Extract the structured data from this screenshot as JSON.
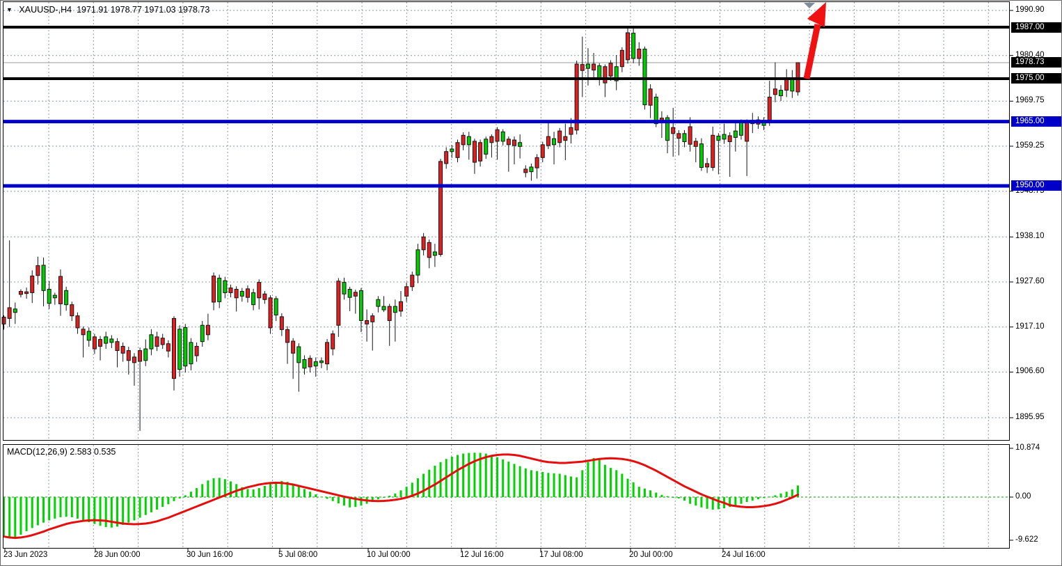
{
  "title": {
    "symbol_period": "XAUUSD-,H4",
    "open": "1971.91",
    "high": "1978.77",
    "low": "1971.03",
    "close": "1978.73"
  },
  "colors": {
    "bull_candle": "#e02020",
    "bear_candle": "#00cc00",
    "candle_border": "#151515",
    "wick": "#151515",
    "histogram": "#00d400",
    "signal_line": "#e60d0d",
    "level_black": "#000000",
    "level_blue": "#0000c8",
    "grid": "#8a99a8",
    "zero_line": "#00a000",
    "badge_black_bg": "#000000",
    "badge_blue_bg": "#0000c8",
    "current_price_line": "#999999",
    "arrow": "#f01212",
    "scroll_marker": "#7f8c99"
  },
  "price_axis": {
    "ticks": [
      1990.9,
      1980.4,
      1969.75,
      1959.25,
      1948.75,
      1938.1,
      1927.6,
      1917.1,
      1906.6,
      1895.95
    ],
    "badges": [
      {
        "label": "1987.00",
        "price": 1987.0,
        "bg": "black",
        "name": "resistance-badge-1987"
      },
      {
        "label": "1978.73",
        "price": 1978.73,
        "bg": "black",
        "name": "current-price-badge"
      },
      {
        "label": "1975.00",
        "price": 1975.0,
        "bg": "black",
        "name": "resistance-badge-1975"
      },
      {
        "label": "1965.00",
        "price": 1965.0,
        "bg": "blue",
        "name": "support-badge-1965"
      },
      {
        "label": "1950.00",
        "price": 1950.0,
        "bg": "blue",
        "name": "support-badge-1950"
      }
    ]
  },
  "levels": [
    {
      "price": 1987.0,
      "color": "black",
      "width": 4,
      "name": "resistance-line-1987"
    },
    {
      "price": 1975.0,
      "color": "black",
      "width": 4,
      "name": "resistance-line-1975"
    },
    {
      "price": 1965.0,
      "color": "blue",
      "width": 5,
      "name": "support-line-1965"
    },
    {
      "price": 1950.0,
      "color": "blue",
      "width": 5,
      "name": "support-line-1950"
    }
  ],
  "current_price": 1978.73,
  "time_axis": {
    "labels": [
      {
        "text": "23 Jun 2023",
        "x": 4
      },
      {
        "text": "28 Jun 00:00",
        "x": 134
      },
      {
        "text": "30 Jun 16:00",
        "x": 267
      },
      {
        "text": "5 Jul 08:00",
        "x": 399
      },
      {
        "text": "10 Jul 00:00",
        "x": 526
      },
      {
        "text": "12 Jul 16:00",
        "x": 660
      },
      {
        "text": "17 Jul 08:00",
        "x": 774
      },
      {
        "text": "20 Jul 00:00",
        "x": 903
      },
      {
        "text": "24 Jul 16:00",
        "x": 1036
      }
    ]
  },
  "macd": {
    "label": "MACD(12,26,9) 2.583 0.535",
    "name_text": "MACD(12,26,9)",
    "value_main": "2.583",
    "value_signal": "0.535",
    "yticks": [
      {
        "label": "10.874",
        "v": 10.874
      },
      {
        "label": "0.00",
        "v": 0.0
      },
      {
        "label": "-9.622",
        "v": -9.622
      }
    ]
  },
  "chart_data": {
    "type": "candlestick_with_macd",
    "symbol": "XAUUSD",
    "timeframe": "H4",
    "ylim": [
      1893.5,
      1993.2
    ],
    "grid": "dashed",
    "candles_format": [
      "open",
      "high",
      "low",
      "close",
      "color r=red g=green"
    ],
    "candles": [
      [
        1917.8,
        1919.8,
        1916.5,
        1919.4,
        "r"
      ],
      [
        1919.1,
        1937.3,
        1917.1,
        1921.6,
        "r"
      ],
      [
        1921.3,
        1922.8,
        1917.8,
        1920.5,
        "g"
      ],
      [
        1924.7,
        1925.9,
        1924.0,
        1925.4,
        "r"
      ],
      [
        1924.9,
        1926.3,
        1923.7,
        1925.3,
        "r"
      ],
      [
        1925.1,
        1930.3,
        1922.7,
        1929.0,
        "r"
      ],
      [
        1929.1,
        1933.5,
        1927.0,
        1931.4,
        "r"
      ],
      [
        1931.5,
        1933.3,
        1921.9,
        1925.6,
        "g"
      ],
      [
        1925.9,
        1927.8,
        1921.3,
        1922.6,
        "g"
      ],
      [
        1924.5,
        1925.1,
        1922.3,
        1923.9,
        "g"
      ],
      [
        1922.5,
        1930.5,
        1919.7,
        1928.9,
        "r"
      ],
      [
        1925.6,
        1926.5,
        1920.9,
        1922.3,
        "g"
      ],
      [
        1919.7,
        1923.0,
        1918.5,
        1922.3,
        "r"
      ],
      [
        1916.9,
        1920.5,
        1915.5,
        1919.7,
        "r"
      ],
      [
        1915.3,
        1917.2,
        1910.0,
        1916.6,
        "r"
      ],
      [
        1916.1,
        1917.0,
        1912.5,
        1914.0,
        "g"
      ],
      [
        1912.0,
        1915.5,
        1910.8,
        1914.8,
        "r"
      ],
      [
        1912.6,
        1915.0,
        1909.3,
        1914.2,
        "r"
      ],
      [
        1914.8,
        1916.0,
        1912.0,
        1913.3,
        "g"
      ],
      [
        1914.3,
        1915.2,
        1912.2,
        1913.5,
        "g"
      ],
      [
        1911.6,
        1914.5,
        1907.7,
        1913.7,
        "r"
      ],
      [
        1911.0,
        1913.5,
        1909.0,
        1912.6,
        "r"
      ],
      [
        1909.3,
        1912.5,
        1906.0,
        1911.6,
        "r"
      ],
      [
        1908.8,
        1911.0,
        1903.4,
        1910.1,
        "r"
      ],
      [
        1909.1,
        1912.3,
        1892.9,
        1911.6,
        "r"
      ],
      [
        1912.0,
        1914.2,
        1908.0,
        1909.3,
        "g"
      ],
      [
        1915.3,
        1916.6,
        1910.5,
        1912.0,
        "g"
      ],
      [
        1912.6,
        1916.0,
        1911.5,
        1914.8,
        "r"
      ],
      [
        1913.0,
        1915.5,
        1912.0,
        1914.5,
        "r"
      ],
      [
        1911.5,
        1914.0,
        1910.0,
        1913.2,
        "r"
      ],
      [
        1905.1,
        1919.6,
        1902.3,
        1919.1,
        "r"
      ],
      [
        1916.6,
        1917.5,
        1905.5,
        1907.2,
        "g"
      ],
      [
        1917.0,
        1917.8,
        1906.5,
        1908.0,
        "g"
      ],
      [
        1913.5,
        1914.5,
        1907.0,
        1908.5,
        "g"
      ],
      [
        1910.4,
        1913.5,
        1909.0,
        1912.6,
        "r"
      ],
      [
        1917.5,
        1918.5,
        1912.5,
        1913.7,
        "g"
      ],
      [
        1915.3,
        1920.2,
        1914.0,
        1917.5,
        "r"
      ],
      [
        1922.9,
        1929.8,
        1921.0,
        1929.0,
        "r"
      ],
      [
        1928.5,
        1929.3,
        1921.5,
        1923.0,
        "g"
      ],
      [
        1927.9,
        1928.8,
        1923.8,
        1925.1,
        "g"
      ],
      [
        1925.1,
        1927.0,
        1924.0,
        1926.2,
        "r"
      ],
      [
        1923.9,
        1926.6,
        1920.7,
        1925.9,
        "r"
      ],
      [
        1925.4,
        1926.2,
        1923.0,
        1924.3,
        "g"
      ],
      [
        1924.0,
        1926.8,
        1922.8,
        1926.0,
        "r"
      ],
      [
        1925.1,
        1926.0,
        1921.0,
        1922.3,
        "g"
      ],
      [
        1923.9,
        1928.2,
        1921.2,
        1927.5,
        "r"
      ],
      [
        1923.5,
        1925.5,
        1922.5,
        1924.8,
        "r"
      ],
      [
        1916.9,
        1924.5,
        1915.5,
        1923.9,
        "r"
      ],
      [
        1923.7,
        1924.3,
        1918.5,
        1919.9,
        "g"
      ],
      [
        1916.5,
        1920.3,
        1915.0,
        1919.5,
        "r"
      ],
      [
        1913.5,
        1917.3,
        1908.5,
        1916.5,
        "r"
      ],
      [
        1911.0,
        1914.5,
        1905.0,
        1913.8,
        "r"
      ],
      [
        1912.5,
        1913.3,
        1902.0,
        1908.8,
        "g"
      ],
      [
        1909.5,
        1910.5,
        1906.0,
        1907.5,
        "g"
      ],
      [
        1907.8,
        1910.5,
        1906.5,
        1909.8,
        "r"
      ],
      [
        1909.0,
        1910.0,
        1905.5,
        1908.0,
        "g"
      ],
      [
        1909.2,
        1910.0,
        1907.5,
        1908.8,
        "g"
      ],
      [
        1908.5,
        1914.3,
        1907.0,
        1913.5,
        "r"
      ],
      [
        1912.0,
        1916.3,
        1910.5,
        1915.5,
        "r"
      ],
      [
        1917.5,
        1928.5,
        1914.8,
        1927.8,
        "r"
      ],
      [
        1927.5,
        1928.6,
        1923.5,
        1924.8,
        "g"
      ],
      [
        1925.9,
        1926.5,
        1920.8,
        1924.0,
        "g"
      ],
      [
        1924.3,
        1925.8,
        1920.2,
        1925.2,
        "r"
      ],
      [
        1925.6,
        1926.2,
        1915.9,
        1918.6,
        "g"
      ],
      [
        1917.8,
        1921.2,
        1913.7,
        1918.6,
        "r"
      ],
      [
        1918.3,
        1920.3,
        1911.6,
        1919.7,
        "r"
      ],
      [
        1923.5,
        1924.3,
        1920.5,
        1921.9,
        "g"
      ],
      [
        1921.9,
        1924.3,
        1920.6,
        1921.1,
        "g"
      ],
      [
        1918.6,
        1922.5,
        1912.7,
        1921.9,
        "r"
      ],
      [
        1921.9,
        1923.5,
        1913.7,
        1920.5,
        "g"
      ],
      [
        1920.8,
        1925.5,
        1919.5,
        1923.0,
        "r"
      ],
      [
        1924.3,
        1927.5,
        1923.0,
        1926.5,
        "r"
      ],
      [
        1926.5,
        1930.0,
        1925.5,
        1929.2,
        "r"
      ],
      [
        1935.1,
        1936.5,
        1927.3,
        1929.2,
        "g"
      ],
      [
        1935.1,
        1939.0,
        1933.8,
        1938.1,
        "r"
      ],
      [
        1933.3,
        1937.5,
        1930.8,
        1936.8,
        "r"
      ],
      [
        1934.6,
        1936.5,
        1931.1,
        1933.8,
        "g"
      ],
      [
        1934.0,
        1956.3,
        1933.5,
        1955.7,
        "r"
      ],
      [
        1955.2,
        1959.0,
        1954.0,
        1958.0,
        "r"
      ],
      [
        1958.6,
        1959.5,
        1956.5,
        1958.0,
        "g"
      ],
      [
        1956.6,
        1960.8,
        1955.5,
        1960.1,
        "r"
      ],
      [
        1959.6,
        1962.5,
        1958.3,
        1961.8,
        "r"
      ],
      [
        1961.5,
        1962.6,
        1956.1,
        1959.6,
        "g"
      ],
      [
        1955.5,
        1961.0,
        1952.8,
        1960.4,
        "r"
      ],
      [
        1955.8,
        1960.8,
        1954.5,
        1960.1,
        "r"
      ],
      [
        1960.9,
        1961.5,
        1956.3,
        1957.4,
        "g"
      ],
      [
        1960.1,
        1962.0,
        1956.6,
        1961.5,
        "r"
      ],
      [
        1960.4,
        1963.7,
        1956.1,
        1963.1,
        "r"
      ],
      [
        1962.6,
        1963.2,
        1959.4,
        1960.4,
        "g"
      ],
      [
        1959.6,
        1961.5,
        1953.3,
        1960.9,
        "r"
      ],
      [
        1959.4,
        1961.5,
        1955.0,
        1960.7,
        "r"
      ],
      [
        1960.1,
        1962.0,
        1956.4,
        1959.2,
        "g"
      ],
      [
        1953.1,
        1954.8,
        1952.0,
        1953.9,
        "r"
      ],
      [
        1954.4,
        1955.2,
        1951.2,
        1953.3,
        "g"
      ],
      [
        1954.2,
        1957.4,
        1951.7,
        1956.6,
        "r"
      ],
      [
        1956.6,
        1960.3,
        1955.5,
        1959.6,
        "r"
      ],
      [
        1959.4,
        1965.3,
        1958.6,
        1961.5,
        "r"
      ],
      [
        1961.0,
        1962.6,
        1955.0,
        1959.6,
        "g"
      ],
      [
        1960.1,
        1963.5,
        1959.0,
        1962.8,
        "r"
      ],
      [
        1960.6,
        1964.5,
        1956.0,
        1961.5,
        "r"
      ],
      [
        1962.0,
        1965.8,
        1959.9,
        1963.6,
        "r"
      ],
      [
        1963.0,
        1979.2,
        1962.0,
        1978.4,
        "r"
      ],
      [
        1976.9,
        1984.8,
        1970.7,
        1978.3,
        "r"
      ],
      [
        1978.4,
        1982.1,
        1973.4,
        1977.4,
        "g"
      ],
      [
        1977.0,
        1981.0,
        1975.0,
        1978.4,
        "r"
      ],
      [
        1978.0,
        1978.6,
        1973.4,
        1975.1,
        "g"
      ],
      [
        1974.0,
        1978.3,
        1970.7,
        1977.8,
        "r"
      ],
      [
        1975.6,
        1979.3,
        1974.5,
        1978.6,
        "r"
      ],
      [
        1977.8,
        1980.5,
        1972.3,
        1974.5,
        "g"
      ],
      [
        1977.8,
        1982.3,
        1976.5,
        1981.6,
        "r"
      ],
      [
        1979.4,
        1987.1,
        1978.5,
        1985.7,
        "r"
      ],
      [
        1985.6,
        1986.7,
        1978.6,
        1979.7,
        "g"
      ],
      [
        1979.7,
        1983.5,
        1978.0,
        1981.9,
        "r"
      ],
      [
        1981.9,
        1982.5,
        1967.8,
        1968.9,
        "g"
      ],
      [
        1968.8,
        1973.7,
        1965.8,
        1972.6,
        "r"
      ],
      [
        1970.7,
        1971.5,
        1963.7,
        1964.5,
        "g"
      ],
      [
        1964.7,
        1967.4,
        1961.2,
        1965.8,
        "r"
      ],
      [
        1965.9,
        1966.5,
        1957.6,
        1960.6,
        "g"
      ],
      [
        1962.2,
        1968.2,
        1956.8,
        1963.6,
        "r"
      ],
      [
        1961.1,
        1963.0,
        1957.1,
        1962.2,
        "r"
      ],
      [
        1962.2,
        1963.0,
        1959.0,
        1960.3,
        "g"
      ],
      [
        1959.7,
        1966.0,
        1958.0,
        1963.8,
        "r"
      ],
      [
        1959.2,
        1961.2,
        1955.5,
        1960.4,
        "r"
      ],
      [
        1959.8,
        1961.1,
        1953.5,
        1954.3,
        "g"
      ],
      [
        1954.4,
        1956.5,
        1953.0,
        1955.2,
        "r"
      ],
      [
        1954.3,
        1963.8,
        1953.5,
        1961.8,
        "r"
      ],
      [
        1961.6,
        1962.3,
        1952.7,
        1960.6,
        "g"
      ],
      [
        1962.0,
        1964.5,
        1959.8,
        1960.9,
        "g"
      ],
      [
        1960.3,
        1962.5,
        1952.1,
        1961.7,
        "r"
      ],
      [
        1962.8,
        1964.8,
        1958.0,
        1961.3,
        "g"
      ],
      [
        1964.8,
        1965.5,
        1960.8,
        1961.8,
        "g"
      ],
      [
        1960.4,
        1965.5,
        1952.3,
        1964.9,
        "r"
      ],
      [
        1965.3,
        1967.0,
        1962.3,
        1964.5,
        "g"
      ],
      [
        1964.4,
        1966.2,
        1963.3,
        1965.4,
        "r"
      ],
      [
        1965.3,
        1966.0,
        1963.0,
        1964.1,
        "g"
      ],
      [
        1965.3,
        1974.5,
        1964.0,
        1970.7,
        "r"
      ],
      [
        1971.3,
        1978.8,
        1969.5,
        1972.6,
        "r"
      ],
      [
        1972.3,
        1973.5,
        1969.8,
        1971.0,
        "g"
      ],
      [
        1972.3,
        1977.2,
        1970.7,
        1974.8,
        "r"
      ],
      [
        1975.1,
        1977.0,
        1970.5,
        1972.1,
        "g"
      ],
      [
        1971.91,
        1978.77,
        1971.03,
        1978.73,
        "r"
      ]
    ],
    "macd_histogram": [
      -8.6,
      -9.2,
      -9.0,
      -8.4,
      -7.6,
      -6.9,
      -6.3,
      -5.7,
      -5.2,
      -4.8,
      -4.5,
      -4.4,
      -4.5,
      -4.8,
      -5.2,
      -5.6,
      -6.0,
      -6.4,
      -6.7,
      -6.8,
      -6.6,
      -6.2,
      -5.7,
      -5.2,
      -4.6,
      -4.0,
      -3.4,
      -2.8,
      -2.2,
      -1.6,
      -0.9,
      -0.3,
      0.4,
      1.2,
      2.0,
      2.9,
      3.7,
      4.2,
      4.3,
      4.0,
      3.5,
      2.9,
      2.2,
      1.8,
      1.7,
      2.0,
      2.5,
      3.0,
      3.4,
      3.6,
      3.4,
      3.0,
      2.4,
      1.8,
      1.2,
      0.6,
      0.1,
      -0.4,
      -0.9,
      -1.4,
      -1.9,
      -2.3,
      -2.2,
      -1.9,
      -1.5,
      -1.0,
      -0.5,
      -0.1,
      0.3,
      0.8,
      1.5,
      2.3,
      3.2,
      4.2,
      5.2,
      6.1,
      7.0,
      7.8,
      8.5,
      9.0,
      9.4,
      9.7,
      9.85,
      9.9,
      9.85,
      9.7,
      9.3,
      8.9,
      8.4,
      7.9,
      7.4,
      6.9,
      6.4,
      6.0,
      5.8,
      5.6,
      5.4,
      5.3,
      5.2,
      4.9,
      4.6,
      4.4,
      6.0,
      7.8,
      8.7,
      8.3,
      7.2,
      6.5,
      6.0,
      5.2,
      4.1,
      3.3,
      2.3,
      1.9,
      1.5,
      1.0,
      0.5,
      0.2,
      0.0,
      -0.3,
      -0.8,
      -1.5,
      -1.9,
      -2.3,
      -2.6,
      -2.8,
      -2.7,
      -2.5,
      -2.2,
      -1.9,
      -1.5,
      -1.1,
      -0.8,
      -0.5,
      -0.2,
      0.1,
      0.4,
      0.8,
      1.2,
      1.7,
      2.583
    ],
    "macd_signal": [
      -8.8,
      -9.0,
      -9.1,
      -9.0,
      -8.8,
      -8.5,
      -8.1,
      -7.7,
      -7.2,
      -6.8,
      -6.4,
      -6.0,
      -5.7,
      -5.5,
      -5.3,
      -5.2,
      -5.15,
      -5.2,
      -5.3,
      -5.5,
      -5.7,
      -5.9,
      -6.0,
      -6.05,
      -6.0,
      -5.9,
      -5.7,
      -5.4,
      -5.0,
      -4.6,
      -4.1,
      -3.6,
      -3.1,
      -2.6,
      -2.1,
      -1.6,
      -1.1,
      -0.6,
      -0.1,
      0.4,
      0.9,
      1.4,
      1.8,
      2.2,
      2.5,
      2.8,
      3.0,
      3.15,
      3.2,
      3.15,
      3.0,
      2.8,
      2.5,
      2.2,
      1.9,
      1.6,
      1.3,
      1.0,
      0.7,
      0.4,
      0.1,
      -0.15,
      -0.4,
      -0.6,
      -0.75,
      -0.85,
      -0.9,
      -0.85,
      -0.75,
      -0.6,
      -0.4,
      -0.1,
      0.3,
      0.8,
      1.4,
      2.1,
      2.8,
      3.6,
      4.4,
      5.2,
      6.0,
      6.7,
      7.4,
      8.0,
      8.5,
      8.9,
      9.2,
      9.4,
      9.5,
      9.5,
      9.4,
      9.2,
      8.9,
      8.6,
      8.3,
      8.0,
      7.8,
      7.7,
      7.6,
      7.6,
      7.7,
      7.8,
      7.9,
      8.1,
      8.3,
      8.5,
      8.6,
      8.65,
      8.6,
      8.5,
      8.3,
      8.0,
      7.6,
      7.1,
      6.5,
      5.9,
      5.2,
      4.5,
      3.8,
      3.1,
      2.4,
      1.8,
      1.2,
      0.6,
      0.1,
      -0.4,
      -0.9,
      -1.3,
      -1.8,
      -2.0,
      -2.15,
      -2.25,
      -2.25,
      -2.15,
      -2.0,
      -1.8,
      -1.5,
      -1.1,
      -0.6,
      -0.1,
      0.535
    ]
  },
  "annotations": {
    "arrow": {
      "description": "red up arrow from 1975 level toward 1990",
      "color": "#f01212"
    },
    "scroll_marker": "down-triangle at top right"
  }
}
